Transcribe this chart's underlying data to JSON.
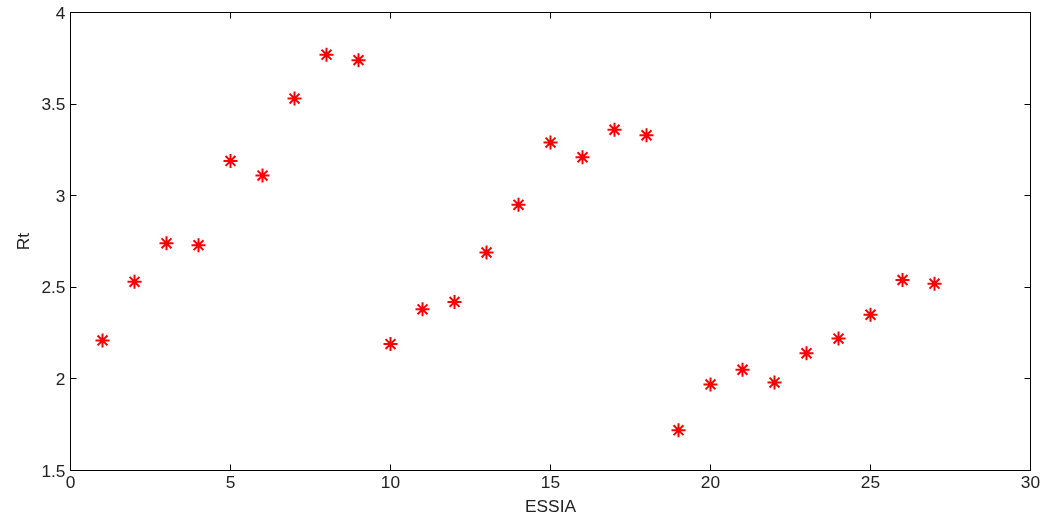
{
  "chart_data": {
    "type": "scatter",
    "xlabel": "ESSIA",
    "ylabel": "Rt",
    "x": [
      1,
      2,
      3,
      4,
      5,
      6,
      7,
      8,
      9,
      10,
      11,
      12,
      13,
      14,
      15,
      16,
      17,
      18,
      19,
      20,
      21,
      22,
      23,
      24,
      25,
      26,
      27
    ],
    "series": [
      {
        "color": "#ff0000",
        "values": [
          2.21,
          2.53,
          2.74,
          2.73,
          3.19,
          3.11,
          3.53,
          3.77,
          3.74,
          2.19,
          2.38,
          2.42,
          2.69,
          2.95,
          3.29,
          3.21,
          3.36,
          3.33,
          1.72,
          1.97,
          2.05,
          1.98,
          2.14,
          2.22,
          2.35,
          2.54,
          2.52
        ]
      }
    ],
    "xlim": [
      0,
      30
    ],
    "ylim": [
      1.5,
      4
    ],
    "xticks": [
      0,
      5,
      10,
      15,
      20,
      25,
      30
    ],
    "yticks": [
      1.5,
      2,
      2.5,
      3,
      3.5,
      4
    ],
    "marker": "cross",
    "grid": false
  }
}
